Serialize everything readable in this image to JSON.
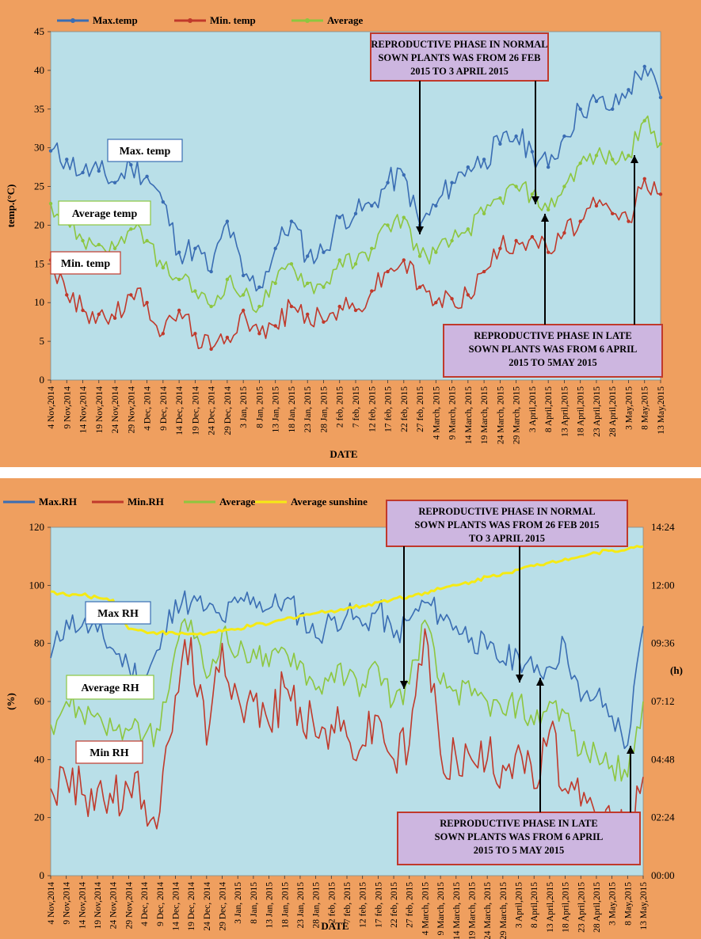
{
  "chart_data": [
    {
      "type": "line",
      "title": "",
      "xlabel": "DATE",
      "ylabel": "temp.(°C)",
      "ylim": [
        0,
        45
      ],
      "yticks": [
        "0",
        "5",
        "10",
        "15",
        "20",
        "25",
        "30",
        "35",
        "40",
        "45"
      ],
      "categories": [
        "4 Nov,2014",
        "9 Nov,2014",
        "14 Nov,2014",
        "19 Nov,2014",
        "24 Nov,2014",
        "29 Nov,2014",
        "4 Dec, 2014",
        "9 Dec, 2014",
        "14 Dec, 2014",
        "19 Dec, 2014",
        "24 Dec, 2014",
        "29 Dec, 2014",
        "3 Jan, 2015",
        "8 Jan, 2015",
        "13 Jan, 2015",
        "18 Jan, 2015",
        "23 Jan, 2015",
        "28 Jan, 2015",
        "2 feb, 2015",
        "7 feb, 2015",
        "12 feb, 2015",
        "17 feb, 2015",
        "22 feb, 2015",
        "27 feb, 2015",
        "4 March, 2015",
        "9 March, 2015",
        "14 March, 2015",
        "19 March, 2015",
        "24 March, 2015",
        "29 March, 2015",
        "3 April,2015",
        "8 April,2015",
        "13 April,2015",
        "18 April,2015",
        "23 April,2015",
        "28 April,2015",
        "3 May,2015",
        "8 May,2015",
        "13 May,2015"
      ],
      "series": [
        {
          "name": "Max.temp",
          "color": "#3a6db3",
          "values": [
            29.6,
            28.5,
            26.8,
            27.0,
            25.5,
            27.8,
            26.3,
            23.0,
            16.5,
            17.0,
            14.0,
            20.5,
            13.5,
            12.0,
            17.0,
            20.5,
            16.0,
            16.5,
            21.0,
            21.5,
            22.5,
            25.5,
            26.5,
            20.0,
            22.5,
            25.5,
            27.5,
            28.5,
            30.5,
            31.5,
            29.5,
            27.5,
            31.5,
            35.0,
            36.0,
            35.0,
            37.5,
            40.5,
            36.5
          ]
        },
        {
          "name": "Min. temp",
          "color": "#c0392b",
          "values": [
            15.5,
            11.0,
            9.0,
            8.5,
            8.0,
            11.0,
            10.0,
            6.0,
            9.0,
            6.0,
            4.0,
            5.5,
            9.0,
            6.0,
            7.0,
            9.5,
            8.5,
            7.5,
            9.5,
            9.0,
            11.5,
            14.0,
            15.5,
            12.0,
            10.0,
            10.5,
            11.0,
            14.0,
            17.0,
            18.0,
            18.5,
            16.5,
            19.0,
            20.5,
            22.5,
            21.5,
            20.5,
            26.0,
            24.0
          ]
        },
        {
          "name": "Average",
          "color": "#8dc63f",
          "values": [
            22.8,
            20.5,
            18.0,
            17.5,
            17.0,
            19.5,
            18.0,
            14.5,
            13.0,
            11.5,
            9.5,
            13.0,
            11.0,
            9.5,
            12.5,
            15.0,
            12.5,
            12.0,
            15.5,
            15.0,
            17.0,
            20.0,
            21.0,
            16.0,
            16.5,
            18.0,
            19.5,
            21.5,
            23.5,
            25.0,
            24.0,
            22.0,
            25.0,
            28.0,
            29.0,
            28.5,
            29.0,
            33.5,
            30.5
          ]
        }
      ],
      "annotations": [
        {
          "label": "Max. temp"
        },
        {
          "label": "Average temp"
        },
        {
          "label": "Min. temp"
        }
      ],
      "note_normal": [
        "REPRODUCTIVE PHASE IN NORMAL",
        "SOWN PLANTS WAS FROM 26 FEB",
        "2015 TO 3 APRIL 2015"
      ],
      "note_late": [
        "REPRODUCTIVE PHASE IN LATE",
        "SOWN PLANTS WAS FROM 6 APRIL",
        "2015 TO 5MAY 2015"
      ]
    },
    {
      "type": "line",
      "title": "",
      "xlabel": "DATE",
      "ylabel": "(%)",
      "ylabel_right": "(h)",
      "ylim": [
        0,
        120
      ],
      "yticks": [
        "0",
        "20",
        "40",
        "60",
        "80",
        "100",
        "120"
      ],
      "ylim_right_hours": [
        0,
        14.4
      ],
      "yticks_right": [
        "00:00",
        "02:24",
        "04:48",
        "07:12",
        "09:36",
        "12:00",
        "14:24"
      ],
      "categories": [
        "4 Nov,2014",
        "9 Nov,2014",
        "14 Nov,2014",
        "19 Nov,2014",
        "24 Nov,2014",
        "29 Nov,2014",
        "4 Dec, 2014",
        "9 Dec, 2014",
        "14 Dec, 2014",
        "19 Dec, 2014",
        "24 Dec, 2014",
        "29 Dec, 2014",
        "3 Jan, 2015",
        "8 Jan, 2015",
        "13 Jan, 2015",
        "18 Jan, 2015",
        "23 Jan, 2015",
        "28 Jan, 2015",
        "2 feb, 2015",
        "7 feb, 2015",
        "12 feb, 2015",
        "17 feb, 2015",
        "22 feb, 2015",
        "27 feb, 2015",
        "4 March, 2015",
        "9 March, 2015",
        "14 March, 2015",
        "19 March, 2015",
        "24 March, 2015",
        "29 March, 2015",
        "3 April,2015",
        "8 April,2015",
        "13 April,2015",
        "18 April,2015",
        "23 April,2015",
        "28 April,2015",
        "3 May,2015",
        "8 May,2015",
        "13 May,2015"
      ],
      "series": [
        {
          "name": "Max.RH",
          "color": "#3a6db3",
          "values": [
            75,
            88,
            86,
            84,
            78,
            72,
            68,
            78,
            95,
            94,
            92,
            88,
            94,
            96,
            92,
            95,
            90,
            82,
            88,
            90,
            86,
            92,
            82,
            88,
            94,
            90,
            86,
            82,
            78,
            74,
            76,
            70,
            72,
            80,
            60,
            62,
            55,
            45,
            86
          ]
        },
        {
          "name": "Min.RH",
          "color": "#c0392b",
          "values": [
            30,
            33,
            28,
            30,
            25,
            30,
            26,
            22,
            62,
            82,
            45,
            80,
            62,
            60,
            52,
            65,
            58,
            48,
            52,
            48,
            45,
            55,
            40,
            45,
            85,
            42,
            41,
            40,
            40,
            38,
            45,
            30,
            50,
            30,
            24,
            20,
            18,
            15,
            34
          ]
        },
        {
          "name": "Average",
          "color": "#8dc63f",
          "values": [
            52,
            60,
            56,
            56,
            50,
            50,
            48,
            50,
            78,
            88,
            68,
            84,
            76,
            78,
            72,
            78,
            74,
            64,
            70,
            68,
            66,
            72,
            60,
            66,
            88,
            66,
            64,
            62,
            60,
            56,
            60,
            52,
            60,
            56,
            42,
            42,
            38,
            34,
            60
          ]
        },
        {
          "name": "Average sunshine",
          "color": "#f5ea14",
          "axis": "right",
          "values_hours": [
            11.75,
            11.6,
            11.6,
            11.5,
            11.4,
            10.2,
            10.1,
            10.05,
            10.0,
            10.0,
            10.0,
            10.1,
            10.2,
            10.35,
            10.4,
            10.6,
            10.75,
            10.85,
            10.95,
            11.05,
            11.15,
            11.3,
            11.45,
            11.55,
            11.7,
            11.85,
            12.0,
            12.15,
            12.35,
            12.5,
            12.65,
            12.8,
            12.95,
            13.1,
            13.2,
            13.35,
            13.45,
            13.5,
            13.6
          ]
        }
      ],
      "annotations": [
        {
          "label": "Max RH"
        },
        {
          "label": "Average RH"
        },
        {
          "label": "Min RH"
        }
      ],
      "note_normal": [
        "REPRODUCTIVE PHASE IN NORMAL",
        "SOWN PLANTS WAS FROM 26 FEB 2015",
        "TO 3 APRIL 2015"
      ],
      "note_late": [
        "REPRODUCTIVE PHASE IN LATE",
        "SOWN PLANTS WAS FROM 6 APRIL",
        "2015 TO 5 MAY 2015"
      ]
    }
  ],
  "colors": {
    "background": "#ef9f5f",
    "plot_area": "#b9dfe8",
    "note_fill": "#cdb6e0",
    "note_border": "#c0392b"
  }
}
